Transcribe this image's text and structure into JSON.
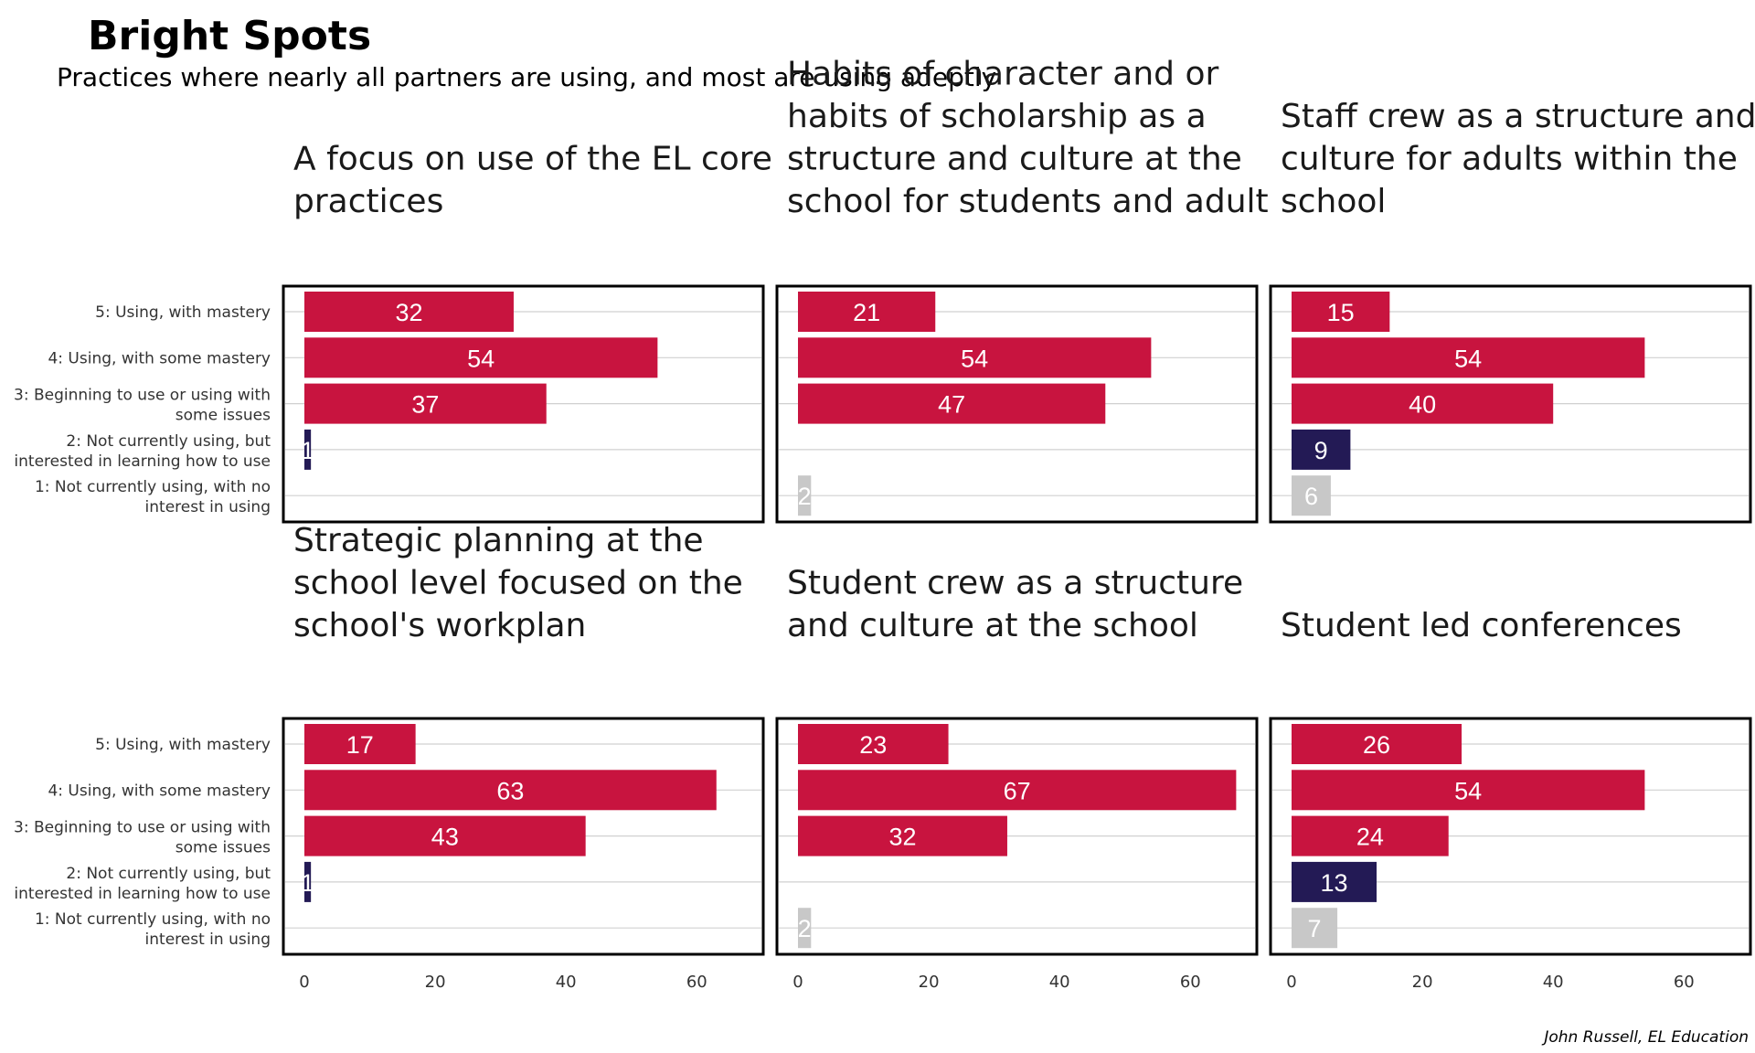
{
  "title": "Bright Spots",
  "subtitle": "Practices where nearly all partners are using, and most are using adeptly",
  "caption": "John Russell, EL Education",
  "colors": {
    "5: Using, with mastery": "#c8143f",
    "4: Using, with some mastery": "#c8143f",
    "3: Beginning to use or using with some issues": "#c8143f",
    "2: Not currently using, but interested in learning how to use": "#231a55",
    "1: Not currently using, with no interest in using": "#c8c8c8"
  },
  "chart_data": {
    "type": "bar",
    "orientation": "horizontal",
    "categories": [
      "5: Using, with mastery",
      "4: Using, with some mastery",
      "3: Beginning to use or using with some issues",
      "2: Not currently using, but interested in learning how to use",
      "1: Not currently using, with no interest in using"
    ],
    "category_lines": [
      [
        "5: Using, with mastery"
      ],
      [
        "4: Using, with some mastery"
      ],
      [
        "3: Beginning to use or using with",
        "some issues"
      ],
      [
        "2: Not currently using, but",
        "interested in learning how to use"
      ],
      [
        "1: Not currently using, with no",
        "interest in using"
      ]
    ],
    "xlim": [
      0,
      70
    ],
    "xticks": [
      0,
      20,
      40,
      60
    ],
    "grid": true,
    "panels": [
      {
        "title_lines": [
          "A focus on use of the EL core",
          "practices"
        ],
        "values": [
          32,
          54,
          37,
          1,
          0
        ],
        "labels": [
          "32",
          "54",
          "37",
          "1",
          ""
        ]
      },
      {
        "title_lines": [
          "Habits of character and or",
          "habits of scholarship as a",
          "structure and culture at the",
          "school for students and adult"
        ],
        "values": [
          21,
          54,
          47,
          0,
          2
        ],
        "labels": [
          "21",
          "54",
          "47",
          "",
          "2"
        ]
      },
      {
        "title_lines": [
          "Staff crew as a structure and",
          "culture for adults within the",
          "school"
        ],
        "values": [
          15,
          54,
          40,
          9,
          6
        ],
        "labels": [
          "15",
          "54",
          "40",
          "9",
          "6"
        ]
      },
      {
        "title_lines": [
          "Strategic planning at the",
          "school level focused on the",
          "school's workplan"
        ],
        "values": [
          17,
          63,
          43,
          1,
          0
        ],
        "labels": [
          "17",
          "63",
          "43",
          "1",
          ""
        ]
      },
      {
        "title_lines": [
          "Student crew as a structure",
          "and culture at the school"
        ],
        "values": [
          23,
          67,
          32,
          0,
          2
        ],
        "labels": [
          "23",
          "67",
          "32",
          "",
          "2"
        ]
      },
      {
        "title_lines": [
          "Student led conferences"
        ],
        "values": [
          26,
          54,
          24,
          13,
          7
        ],
        "labels": [
          "26",
          "54",
          "24",
          "13",
          "7"
        ]
      }
    ]
  }
}
